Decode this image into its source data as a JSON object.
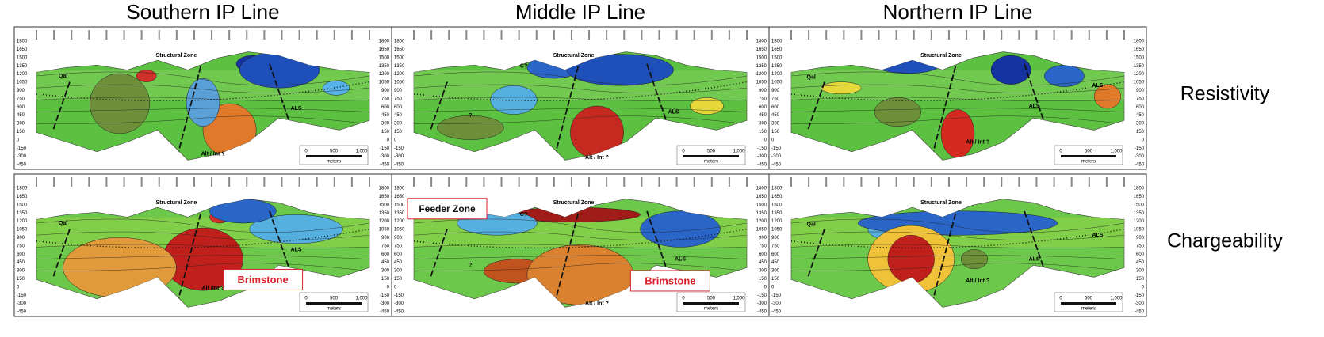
{
  "titles": [
    "Southern IP Line",
    "Middle IP Line",
    "Northern IP Line"
  ],
  "row_labels": [
    "Resistivity",
    "Chargeability"
  ],
  "elevation_ticks": [
    1800,
    1650,
    1500,
    1350,
    1200,
    1050,
    900,
    750,
    600,
    450,
    300,
    150,
    0,
    -150,
    -300,
    -450
  ],
  "scale_bar": {
    "labels": [
      "0",
      "500",
      "1,000"
    ],
    "unit": "meters"
  },
  "panels": [
    {
      "annotations": [
        "Structural Zone",
        "Qal",
        "ALS",
        "Alt / Int ?"
      ]
    },
    {
      "annotations": [
        "Structural Zone",
        "C?",
        "?",
        "ALS",
        "Alt / Int ?"
      ]
    },
    {
      "annotations": [
        "Structural Zone",
        "Qal",
        "ALS",
        "ALS",
        "Alt / Int ?"
      ]
    },
    {
      "annotations": [
        "Structural Zone",
        "Qal",
        "ALS",
        "Alt /Int ?"
      ],
      "callouts": [
        "Brimstone"
      ]
    },
    {
      "annotations": [
        "Structural Zone",
        "C?",
        "?",
        "ALS",
        "Alt / Int ?"
      ],
      "callouts": [
        "Feeder Zone",
        "Brimstone"
      ]
    },
    {
      "annotations": [
        "Structural Zone",
        "Qal",
        "ALS",
        "ALS",
        "Alt / Int ?"
      ]
    }
  ]
}
